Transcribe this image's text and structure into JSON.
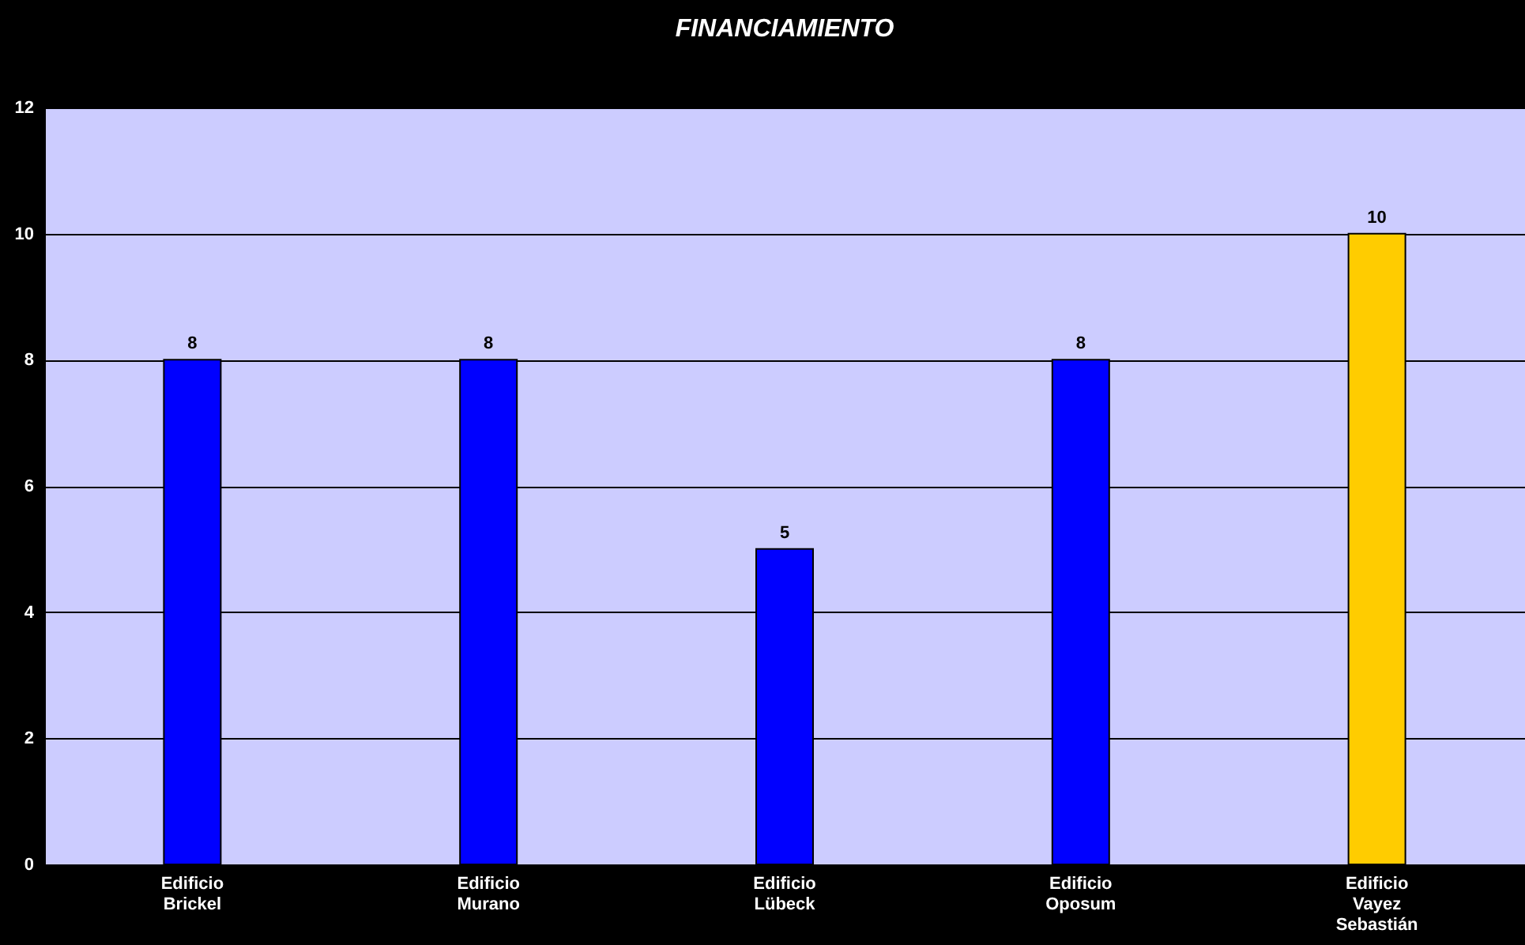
{
  "chart_data": {
    "type": "bar",
    "title": "FINANCIAMIENTO",
    "categories": [
      "Edificio Brickel",
      "Edificio Murano",
      "Edificio Lübeck",
      "Edificio Oposum",
      "Edificio Vayez Sebastián"
    ],
    "values": [
      8,
      8,
      5,
      8,
      10
    ],
    "colors": [
      "#0000ff",
      "#0000ff",
      "#0000ff",
      "#0000ff",
      "#ffcc00"
    ],
    "ylim": [
      0,
      12
    ],
    "yticks": [
      0,
      2,
      4,
      6,
      8,
      10,
      12
    ],
    "grid": "y",
    "data_labels": true,
    "legend": false
  }
}
